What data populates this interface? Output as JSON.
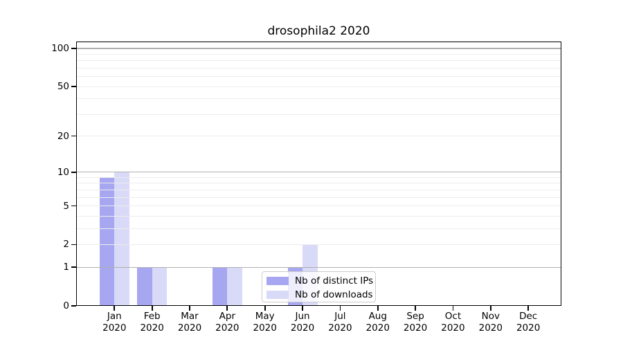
{
  "chart_data": {
    "type": "bar",
    "title": "drosophila2 2020",
    "x_axis": {
      "months": [
        "Jan",
        "Feb",
        "Mar",
        "Apr",
        "May",
        "Jun",
        "Jul",
        "Aug",
        "Sep",
        "Oct",
        "Nov",
        "Dec"
      ],
      "year": "2020"
    },
    "series": [
      {
        "name": "Nb of distinct IPs",
        "color": "#a6a6f1",
        "values": [
          9,
          1,
          0,
          1,
          0,
          1,
          0,
          0,
          0,
          0,
          0,
          0
        ]
      },
      {
        "name": "Nb of downloads",
        "color": "#d9d9f8",
        "values": [
          10,
          1,
          0,
          1,
          0,
          2,
          0,
          0,
          0,
          0,
          0,
          0
        ]
      }
    ],
    "y_axis": {
      "scale": "log1p",
      "ticks": [
        0,
        1,
        2,
        5,
        10,
        20,
        50,
        100
      ],
      "range": [
        0,
        113
      ],
      "major_gridlines": [
        1,
        10,
        100
      ],
      "minor_gridlines": [
        2,
        3,
        4,
        5,
        6,
        7,
        8,
        9,
        20,
        30,
        40,
        50,
        60,
        70,
        80,
        90
      ]
    },
    "legend": {
      "items": [
        "Nb of distinct IPs",
        "Nb of downloads"
      ],
      "position": "inside-bottom-center"
    },
    "colors": {
      "background": "#ffffff",
      "spine": "#000000",
      "major_grid": "#b0b0b0",
      "minor_grid": "#ededed",
      "legend_border": "#cccccc",
      "text": "#000000"
    }
  }
}
